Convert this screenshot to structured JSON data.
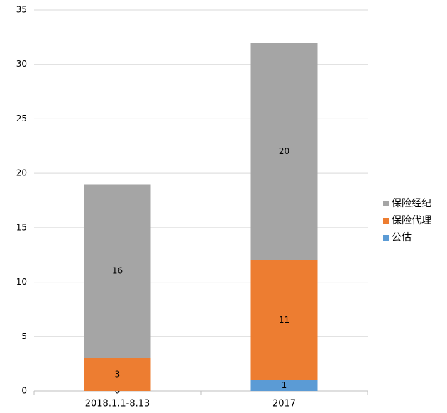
{
  "chart_data": {
    "type": "stacked_bar",
    "categories": [
      "2018.1.1-8.13",
      "2017"
    ],
    "series": [
      {
        "name": "公估",
        "color": "#5b9bd5",
        "values": [
          0,
          1
        ]
      },
      {
        "name": "保险代理",
        "color": "#ed7d31",
        "values": [
          3,
          11
        ]
      },
      {
        "name": "保险经纪",
        "color": "#a5a5a5",
        "values": [
          16,
          20
        ]
      }
    ],
    "ylim": [
      0,
      35
    ],
    "yticks": [
      0,
      5,
      10,
      15,
      20,
      25,
      30,
      35
    ],
    "grid": true,
    "legend": "right"
  }
}
